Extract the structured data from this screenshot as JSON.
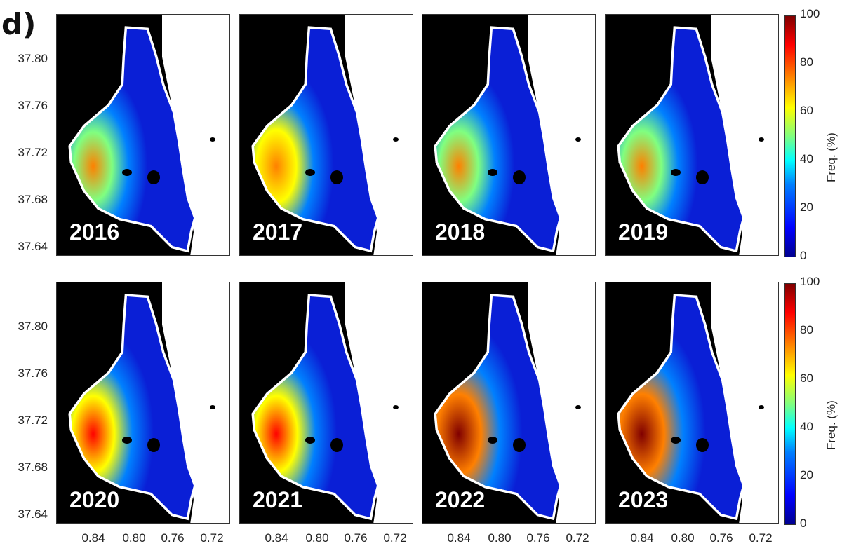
{
  "panel_label": "d)",
  "colorbar": {
    "title": "Freq. (%)",
    "ticks": [
      "100",
      "80",
      "60",
      "40",
      "20",
      "0"
    ],
    "range": [
      0,
      100
    ]
  },
  "chart_data": {
    "type": "heatmap",
    "title": "",
    "xlabel": "",
    "ylabel": "",
    "x_ticks": [
      "0.84",
      "0.80",
      "0.76",
      "0.72"
    ],
    "y_ticks": [
      "37.80",
      "37.76",
      "37.72",
      "37.68",
      "37.64"
    ],
    "xlim": [
      0.86,
      0.7
    ],
    "ylim": [
      37.62,
      37.83
    ],
    "colormap": "jet",
    "value_range": [
      0,
      100
    ],
    "panels": [
      {
        "year": "2016",
        "max_freq": 65,
        "hotspot": "west"
      },
      {
        "year": "2017",
        "max_freq": 75,
        "hotspot": "west"
      },
      {
        "year": "2018",
        "max_freq": 70,
        "hotspot": "west"
      },
      {
        "year": "2019",
        "max_freq": 70,
        "hotspot": "west"
      },
      {
        "year": "2020",
        "max_freq": 85,
        "hotspot": "west"
      },
      {
        "year": "2021",
        "max_freq": 85,
        "hotspot": "west"
      },
      {
        "year": "2022",
        "max_freq": 95,
        "hotspot": "west"
      },
      {
        "year": "2023",
        "max_freq": 95,
        "hotspot": "west"
      }
    ]
  },
  "colors": {
    "background": "#000000",
    "land": "#ffffff",
    "water_base": "#0a1fd6"
  }
}
